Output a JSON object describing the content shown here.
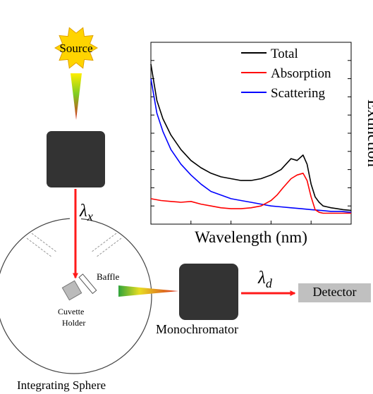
{
  "diagram": {
    "source_label": "Source",
    "lambda_x": {
      "symbol": "λ",
      "subscript": "x"
    },
    "lambda_d": {
      "symbol": "λ",
      "subscript": "d"
    },
    "baffle_label": "Baffle",
    "cuvette_label_1": "Cuvette",
    "cuvette_label_2": "Holder",
    "monochromator_label": "Monochromator",
    "detector_label": "Detector",
    "sphere_label": "Integrating Sphere"
  },
  "chart_data": {
    "type": "line",
    "title": "",
    "xlabel": "Wavelength (nm)",
    "ylabel": "Extinction",
    "x_ticks_labeled": false,
    "y_ticks_labeled": false,
    "xlim": [
      0,
      100
    ],
    "ylim": [
      0,
      100
    ],
    "legend_position": "top-right",
    "grid": false,
    "series": [
      {
        "name": "Total",
        "color": "#000000",
        "x": [
          0,
          3,
          6,
          10,
          15,
          20,
          25,
          30,
          35,
          40,
          45,
          50,
          55,
          60,
          65,
          70,
          73,
          76,
          78,
          80,
          82,
          84,
          86,
          88,
          90,
          93,
          96,
          100
        ],
        "y": [
          88,
          68,
          58,
          49,
          41,
          35,
          31,
          28,
          26,
          25,
          24,
          24,
          25,
          27,
          30,
          36,
          35,
          38,
          33,
          22,
          15,
          12,
          10,
          9.5,
          9,
          8.5,
          8,
          7.5
        ]
      },
      {
        "name": "Absorption",
        "color": "#ff0000",
        "x": [
          0,
          5,
          10,
          15,
          20,
          25,
          30,
          35,
          40,
          45,
          50,
          55,
          60,
          63,
          66,
          70,
          73,
          76,
          78,
          80,
          82,
          84,
          86,
          90,
          95,
          100
        ],
        "y": [
          14,
          13,
          12.5,
          12,
          12.5,
          11,
          10,
          9,
          8.5,
          8.5,
          9,
          10,
          13,
          16,
          20,
          25,
          27,
          28,
          24,
          15,
          8,
          6.5,
          6,
          6,
          6,
          6
        ]
      },
      {
        "name": "Scattering",
        "color": "#0000ff",
        "x": [
          0,
          3,
          6,
          10,
          15,
          20,
          25,
          30,
          35,
          40,
          45,
          50,
          55,
          60,
          65,
          70,
          75,
          80,
          85,
          90,
          95,
          100
        ],
        "y": [
          80,
          61,
          51,
          41,
          33,
          27,
          22,
          18,
          16,
          14,
          13,
          12,
          11,
          10,
          9.5,
          9,
          8.5,
          8,
          7.5,
          7,
          7,
          6.5
        ]
      }
    ]
  }
}
